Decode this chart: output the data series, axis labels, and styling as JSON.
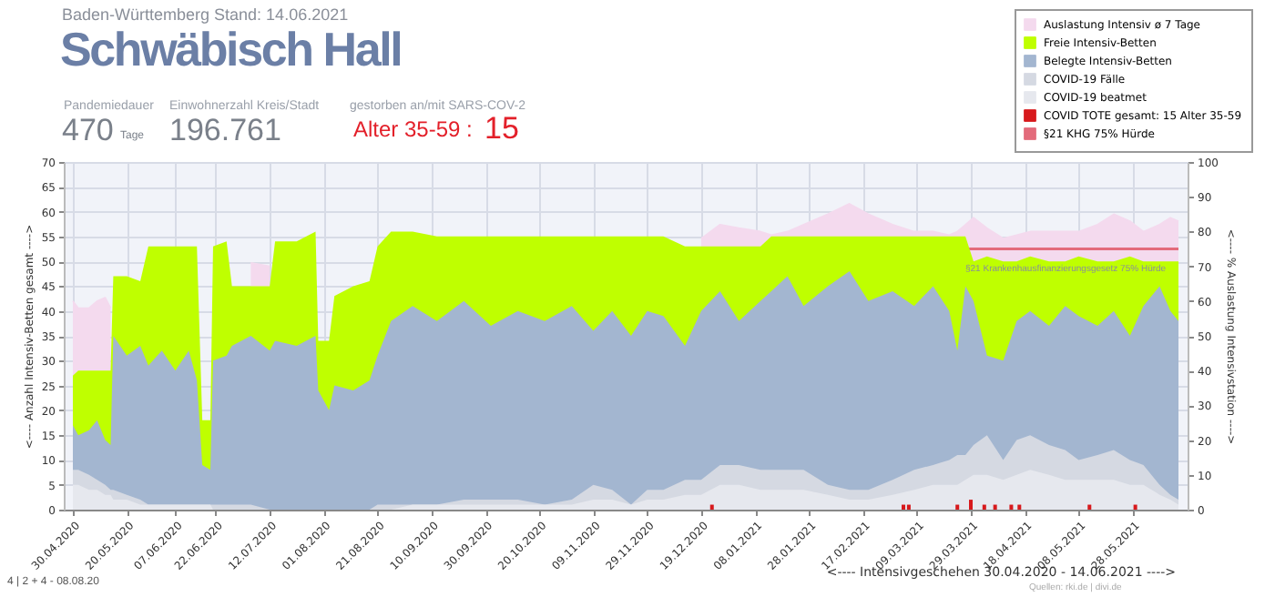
{
  "chart_data": {
    "type": "area",
    "title": "Schwäbisch Hall",
    "subtitle": "Baden-Württemberg Stand: 14.06.2021",
    "xlabel": "<---- Intensivgeschehen 30.04.2020 - 14.06.2021 ---->",
    "ylabel": "<---- Anzahl Intensiv-Betten gesamt ---->",
    "y2label": "<---- % Auslastung Intensivstation ---->",
    "annotations": [
      "Pandemiedauer",
      "470",
      "Tage",
      "Einwohnerzahl Kreis/Stadt",
      "196.761",
      "gestorben an/mit SARS-COV-2",
      "Alter 35-59 :",
      "15",
      "§21 Krankenhausfinanzierungsgesetz 75% Hürde",
      "4 | 2 + 4 - 08.08.20",
      "Quellen: rki.de | divi.de"
    ],
    "x": [
      "2020-04-30",
      "2020-05-02",
      "2020-05-06",
      "2020-05-09",
      "2020-05-12",
      "2020-05-14",
      "2020-05-15",
      "2020-05-20",
      "2020-05-25",
      "2020-05-28",
      "2020-06-02",
      "2020-06-07",
      "2020-06-12",
      "2020-06-15",
      "2020-06-17",
      "2020-06-20",
      "2020-06-21",
      "2020-06-26",
      "2020-06-28",
      "2020-07-05",
      "2020-07-12",
      "2020-07-14",
      "2020-07-22",
      "2020-07-29",
      "2020-07-30",
      "2020-08-03",
      "2020-08-05",
      "2020-08-12",
      "2020-08-18",
      "2020-08-21",
      "2020-08-26",
      "2020-09-03",
      "2020-09-12",
      "2020-09-22",
      "2020-10-02",
      "2020-10-12",
      "2020-10-22",
      "2020-11-01",
      "2020-11-09",
      "2020-11-16",
      "2020-11-23",
      "2020-11-29",
      "2020-12-05",
      "2020-12-13",
      "2020-12-19",
      "2020-12-26",
      "2021-01-02",
      "2021-01-10",
      "2021-01-14",
      "2021-01-20",
      "2021-01-26",
      "2021-02-04",
      "2021-02-12",
      "2021-02-19",
      "2021-02-28",
      "2021-03-08",
      "2021-03-15",
      "2021-03-21",
      "2021-03-24",
      "2021-03-27",
      "2021-03-30",
      "2021-04-04",
      "2021-04-10",
      "2021-04-15",
      "2021-04-20",
      "2021-04-27",
      "2021-05-03",
      "2021-05-08",
      "2021-05-15",
      "2021-05-21",
      "2021-05-27",
      "2021-06-01",
      "2021-06-07",
      "2021-06-11",
      "2021-06-14"
    ],
    "series": [
      {
        "name": "Auslastung Intensiv ø 7 Tage",
        "type": "area",
        "axis": "y2",
        "color": "#f4daee",
        "values": [
          60,
          58,
          58,
          60,
          61,
          58,
          null,
          null,
          null,
          null,
          null,
          null,
          null,
          null,
          null,
          null,
          null,
          null,
          null,
          71,
          70,
          null,
          null,
          null,
          null,
          null,
          null,
          null,
          null,
          null,
          null,
          null,
          null,
          null,
          null,
          null,
          null,
          null,
          null,
          null,
          null,
          null,
          null,
          null,
          78,
          82,
          81,
          80,
          79,
          80,
          82,
          85,
          88,
          85,
          82,
          80,
          80,
          79,
          80,
          82,
          84,
          81,
          78,
          79,
          80,
          80,
          80,
          80,
          82,
          85,
          83,
          80,
          82,
          84,
          83
        ]
      },
      {
        "name": "Freie Intensiv-Betten",
        "type": "area",
        "color": "#bfff00",
        "values": [
          27,
          28,
          28,
          28,
          28,
          28,
          47,
          47,
          46,
          53,
          53,
          53,
          53,
          53,
          18,
          18,
          53,
          54,
          45,
          45,
          45,
          54,
          54,
          56,
          34,
          34,
          43,
          45,
          46,
          53,
          56,
          56,
          55,
          55,
          55,
          55,
          55,
          55,
          55,
          55,
          55,
          55,
          55,
          53,
          53,
          53,
          53,
          53,
          55,
          55,
          55,
          55,
          55,
          55,
          55,
          55,
          55,
          55,
          55,
          55,
          50,
          51,
          50,
          50,
          51,
          50,
          50,
          51,
          50,
          50,
          51,
          50,
          50,
          50,
          50
        ]
      },
      {
        "name": "Belegte Intensiv-Betten",
        "type": "area",
        "color": "#a3b6d0",
        "values": [
          17,
          15,
          16,
          18,
          14,
          13,
          35,
          31,
          33,
          29,
          32,
          28,
          32,
          26,
          9,
          8,
          30,
          31,
          33,
          35,
          32,
          34,
          33,
          35,
          24,
          20,
          25,
          24,
          26,
          31,
          38,
          41,
          38,
          42,
          37,
          40,
          38,
          41,
          36,
          40,
          35,
          40,
          39,
          33,
          40,
          44,
          38,
          42,
          44,
          47,
          41,
          45,
          48,
          42,
          44,
          41,
          45,
          40,
          32,
          45,
          42,
          31,
          30,
          38,
          40,
          37,
          41,
          39,
          37,
          40,
          35,
          41,
          45,
          40,
          38
        ]
      },
      {
        "name": "COVID-19 Fälle",
        "type": "area",
        "color": "#d5d9e2",
        "values": [
          8,
          8,
          7,
          6,
          5,
          4,
          4,
          3,
          2,
          1,
          1,
          1,
          1,
          1,
          1,
          1,
          1,
          1,
          1,
          1,
          0,
          0,
          0,
          0,
          0,
          0,
          0,
          0,
          0,
          1,
          1,
          1,
          1,
          2,
          2,
          2,
          1,
          2,
          5,
          4,
          1,
          4,
          4,
          6,
          6,
          9,
          9,
          8,
          8,
          8,
          8,
          5,
          4,
          4,
          6,
          8,
          9,
          10,
          11,
          11,
          13,
          15,
          10,
          14,
          15,
          13,
          12,
          10,
          11,
          12,
          10,
          9,
          5,
          3,
          2
        ]
      },
      {
        "name": "COVID-19 beatmet",
        "type": "area",
        "color": "#e6e8ee",
        "values": [
          5,
          5,
          4,
          4,
          3,
          3,
          2,
          2,
          1,
          1,
          1,
          1,
          1,
          1,
          1,
          1,
          0,
          0,
          0,
          0,
          0,
          0,
          0,
          0,
          0,
          0,
          0,
          0,
          0,
          0,
          0,
          1,
          1,
          1,
          1,
          1,
          1,
          1,
          2,
          2,
          1,
          2,
          2,
          3,
          3,
          5,
          5,
          4,
          4,
          4,
          4,
          3,
          2,
          2,
          3,
          4,
          5,
          5,
          5,
          6,
          7,
          7,
          6,
          7,
          8,
          7,
          6,
          6,
          6,
          6,
          5,
          5,
          3,
          2,
          1
        ]
      },
      {
        "name": "COVID TOTE gesamt: 15 Alter 35-59",
        "type": "bar",
        "color": "#d7191c",
        "x": [
          "2020-12-23",
          "2021-03-04",
          "2021-03-06",
          "2021-03-24",
          "2021-03-29",
          "2021-04-03",
          "2021-04-07",
          "2021-04-13",
          "2021-04-16",
          "2021-05-12",
          "2021-05-29"
        ],
        "values": [
          1,
          1,
          1,
          1,
          2,
          1,
          1,
          1,
          1,
          1,
          1
        ]
      },
      {
        "name": "§21 KHG 75% Hürde",
        "type": "line",
        "axis": "y2",
        "color": "#e36b7b",
        "x": [
          "2021-03-27",
          "2021-06-14"
        ],
        "values": [
          75,
          75
        ]
      }
    ],
    "xlim": [
      "2020-04-30",
      "2021-06-14"
    ],
    "xticks": [
      {
        "value": "2020-04-30",
        "label": "30.04.2020"
      },
      {
        "value": "2020-05-20",
        "label": "20.05.2020"
      },
      {
        "value": "2020-06-07",
        "label": "07.06.2020"
      },
      {
        "value": "2020-06-22",
        "label": "22.06.2020"
      },
      {
        "value": "2020-07-12",
        "label": "12.07.2020"
      },
      {
        "value": "2020-08-01",
        "label": "01.08.2020"
      },
      {
        "value": "2020-08-21",
        "label": "21.08.2020"
      },
      {
        "value": "2020-09-10",
        "label": "10.09.2020"
      },
      {
        "value": "2020-09-30",
        "label": "30.09.2020"
      },
      {
        "value": "2020-10-20",
        "label": "20.10.2020"
      },
      {
        "value": "2020-11-09",
        "label": "09.11.2020"
      },
      {
        "value": "2020-11-29",
        "label": "29.11.2020"
      },
      {
        "value": "2020-12-19",
        "label": "19.12.2020"
      },
      {
        "value": "2021-01-08",
        "label": "08.01.2021"
      },
      {
        "value": "2021-01-28",
        "label": "28.01.2021"
      },
      {
        "value": "2021-02-17",
        "label": "17.02.2021"
      },
      {
        "value": "2021-03-09",
        "label": "09.03.2021"
      },
      {
        "value": "2021-03-29",
        "label": "29.03.2021"
      },
      {
        "value": "2021-04-18",
        "label": "18.04.2021"
      },
      {
        "value": "2021-05-08",
        "label": "08.05.2021"
      },
      {
        "value": "2021-05-28",
        "label": "28.05.2021"
      }
    ],
    "ylim": [
      0,
      70
    ],
    "yticks": [
      0,
      5,
      10,
      15,
      20,
      25,
      30,
      35,
      40,
      45,
      50,
      55,
      60,
      65,
      70
    ],
    "y2lim": [
      0,
      100
    ],
    "y2ticks": [
      0,
      10,
      20,
      30,
      40,
      50,
      60,
      70,
      80,
      90,
      100
    ],
    "grid": true,
    "legend": "top right"
  }
}
